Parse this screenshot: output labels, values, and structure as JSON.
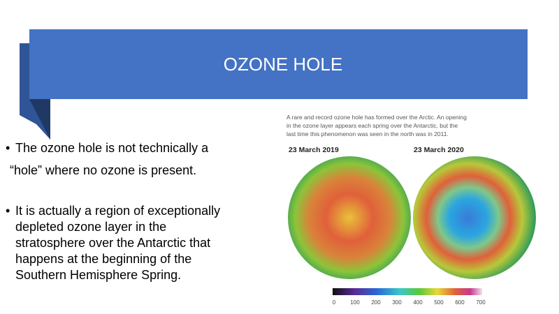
{
  "title": "OZONE HOLE",
  "bullets": [
    [
      "The ozone hole is not technically a",
      "“hole” where no ozone is present."
    ],
    [
      "It is actually a region of exceptionally",
      "depleted ozone layer in the",
      "stratosphere over the Antarctic that",
      "happens at the beginning of the",
      "Southern Hemisphere Spring."
    ]
  ],
  "figure": {
    "caption": [
      "A rare and record ozone hole has formed over the Arctic. An opening",
      "in the ozone layer appears each spring over the Antarctic, but the",
      "last time this phenomenon was seen in the north was in 2011."
    ],
    "dates": [
      "23 March 2019",
      "23 March 2020"
    ],
    "scale": [
      "0",
      "100",
      "200",
      "300",
      "400",
      "500",
      "600",
      "700"
    ]
  }
}
